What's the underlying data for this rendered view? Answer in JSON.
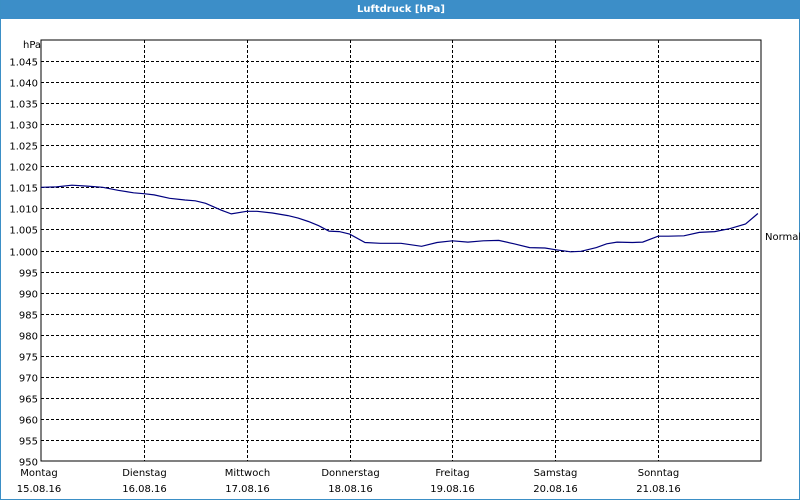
{
  "window": {
    "title": "Luftdruck [hPa]"
  },
  "chart_data": {
    "type": "line",
    "title": "Luftdruck [hPa]",
    "ylabel": "hPa",
    "xlabel": "",
    "ylim": [
      950,
      1050
    ],
    "yticks": [
      "950",
      "955",
      "960",
      "965",
      "970",
      "975",
      "980",
      "985",
      "990",
      "995",
      "1.000",
      "1.005",
      "1.010",
      "1.015",
      "1.020",
      "1.025",
      "1.030",
      "1.035",
      "1.040",
      "1.045"
    ],
    "xlim": [
      0,
      7
    ],
    "xticks": [
      {
        "day": "Montag",
        "date": "15.08.16"
      },
      {
        "day": "Dienstag",
        "date": "16.08.16"
      },
      {
        "day": "Mittwoch",
        "date": "17.08.16"
      },
      {
        "day": "Donnerstag",
        "date": "18.08.16"
      },
      {
        "day": "Freitag",
        "date": "19.08.16"
      },
      {
        "day": "Samstag",
        "date": "20.08.16"
      },
      {
        "day": "Sonntag",
        "date": "21.08.16"
      }
    ],
    "grid": true,
    "reference_line": {
      "label": "Normal",
      "value": 1003.5
    },
    "line_color": "#00007f",
    "series": [
      {
        "x": [
          0,
          0.15,
          0.3,
          0.45,
          0.6,
          0.75,
          0.9,
          1.0,
          1.1,
          1.25,
          1.4,
          1.5,
          1.6,
          1.75,
          1.85,
          2.0,
          2.1,
          2.25,
          2.4,
          2.5,
          2.6,
          2.7,
          2.8,
          2.9,
          3.0,
          3.15,
          3.3,
          3.5,
          3.7,
          3.85,
          4.0,
          4.15,
          4.3,
          4.45,
          4.6,
          4.75,
          4.9,
          5.0,
          5.15,
          5.25,
          5.4,
          5.5,
          5.6,
          5.75,
          5.85,
          6.0,
          6.1,
          6.25,
          6.4,
          6.55,
          6.7,
          6.85,
          6.97
        ],
        "y": [
          1015.0,
          1015.1,
          1015.5,
          1015.3,
          1015.0,
          1014.3,
          1013.7,
          1013.5,
          1013.2,
          1012.4,
          1012.0,
          1011.8,
          1011.2,
          1009.6,
          1008.7,
          1009.3,
          1009.3,
          1008.9,
          1008.3,
          1007.7,
          1006.9,
          1005.9,
          1004.6,
          1004.5,
          1003.9,
          1001.9,
          1001.7,
          1001.7,
          1001.0,
          1001.9,
          1002.3,
          1002.0,
          1002.3,
          1002.4,
          1001.6,
          1000.7,
          1000.6,
          1000.2,
          999.7,
          999.8,
          1000.7,
          1001.6,
          1002.0,
          1001.9,
          1002.0,
          1003.4,
          1003.4,
          1003.5,
          1004.3,
          1004.5,
          1005.2,
          1006.3,
          1008.8
        ]
      }
    ]
  }
}
